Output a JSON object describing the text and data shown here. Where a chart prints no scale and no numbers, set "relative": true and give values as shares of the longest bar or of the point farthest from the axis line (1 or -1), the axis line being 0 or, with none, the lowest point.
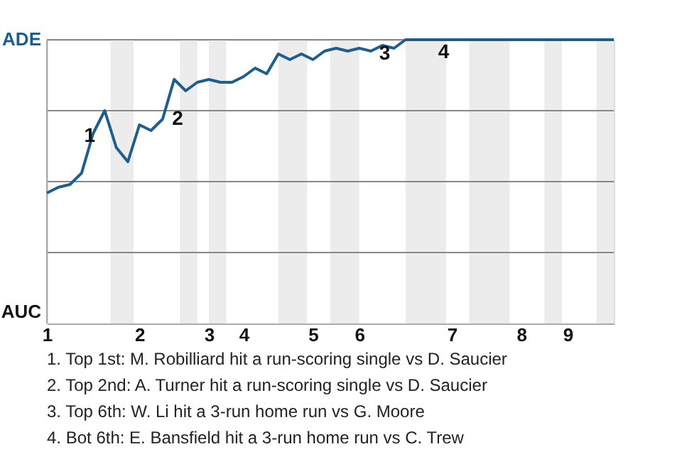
{
  "chart_data": {
    "type": "line",
    "relative": true,
    "categories": [
      "1",
      null,
      null,
      null,
      null,
      null,
      null,
      null,
      "2",
      null,
      null,
      null,
      null,
      null,
      "3",
      null,
      null,
      "4",
      null,
      null,
      null,
      null,
      null,
      "5",
      null,
      null,
      null,
      "6",
      null,
      null,
      null,
      null,
      null,
      null,
      null,
      "7",
      null,
      null,
      null,
      null,
      null,
      "8",
      null,
      null,
      null,
      "9",
      null,
      null,
      null,
      null
    ],
    "series": [
      {
        "color": "#1d5e8f",
        "values": [
          0.46,
          0.48,
          0.49,
          0.53,
          0.67,
          0.75,
          0.62,
          0.57,
          0.7,
          0.68,
          0.72,
          0.86,
          0.82,
          0.85,
          0.86,
          0.85,
          0.85,
          0.87,
          0.9,
          0.88,
          0.95,
          0.93,
          0.95,
          0.93,
          0.96,
          0.97,
          0.96,
          0.97,
          0.96,
          0.98,
          0.97,
          1.0,
          1.0,
          1.0,
          1.0,
          1.0,
          1.0,
          1.0,
          1.0,
          1.0,
          1.0,
          1.0,
          1.0,
          1.0,
          1.0,
          1.0,
          1.0,
          1.0,
          1.0,
          1.0
        ]
      }
    ],
    "grid": "y",
    "annotations": [
      "ADE",
      "AUC",
      "1",
      "2",
      "3",
      "4",
      "1. Top 1st: M. Robilliard hit a run-scoring single vs D. Saucier",
      "2. Top 2nd: A. Turner hit a run-scoring single vs D. Saucier",
      "3. Top 6th: W. Li hit a 3-run home run vs G. Moore",
      "4. Bot 6th: E. Bansfield hit a 3-run home run vs C. Trew"
    ]
  }
}
